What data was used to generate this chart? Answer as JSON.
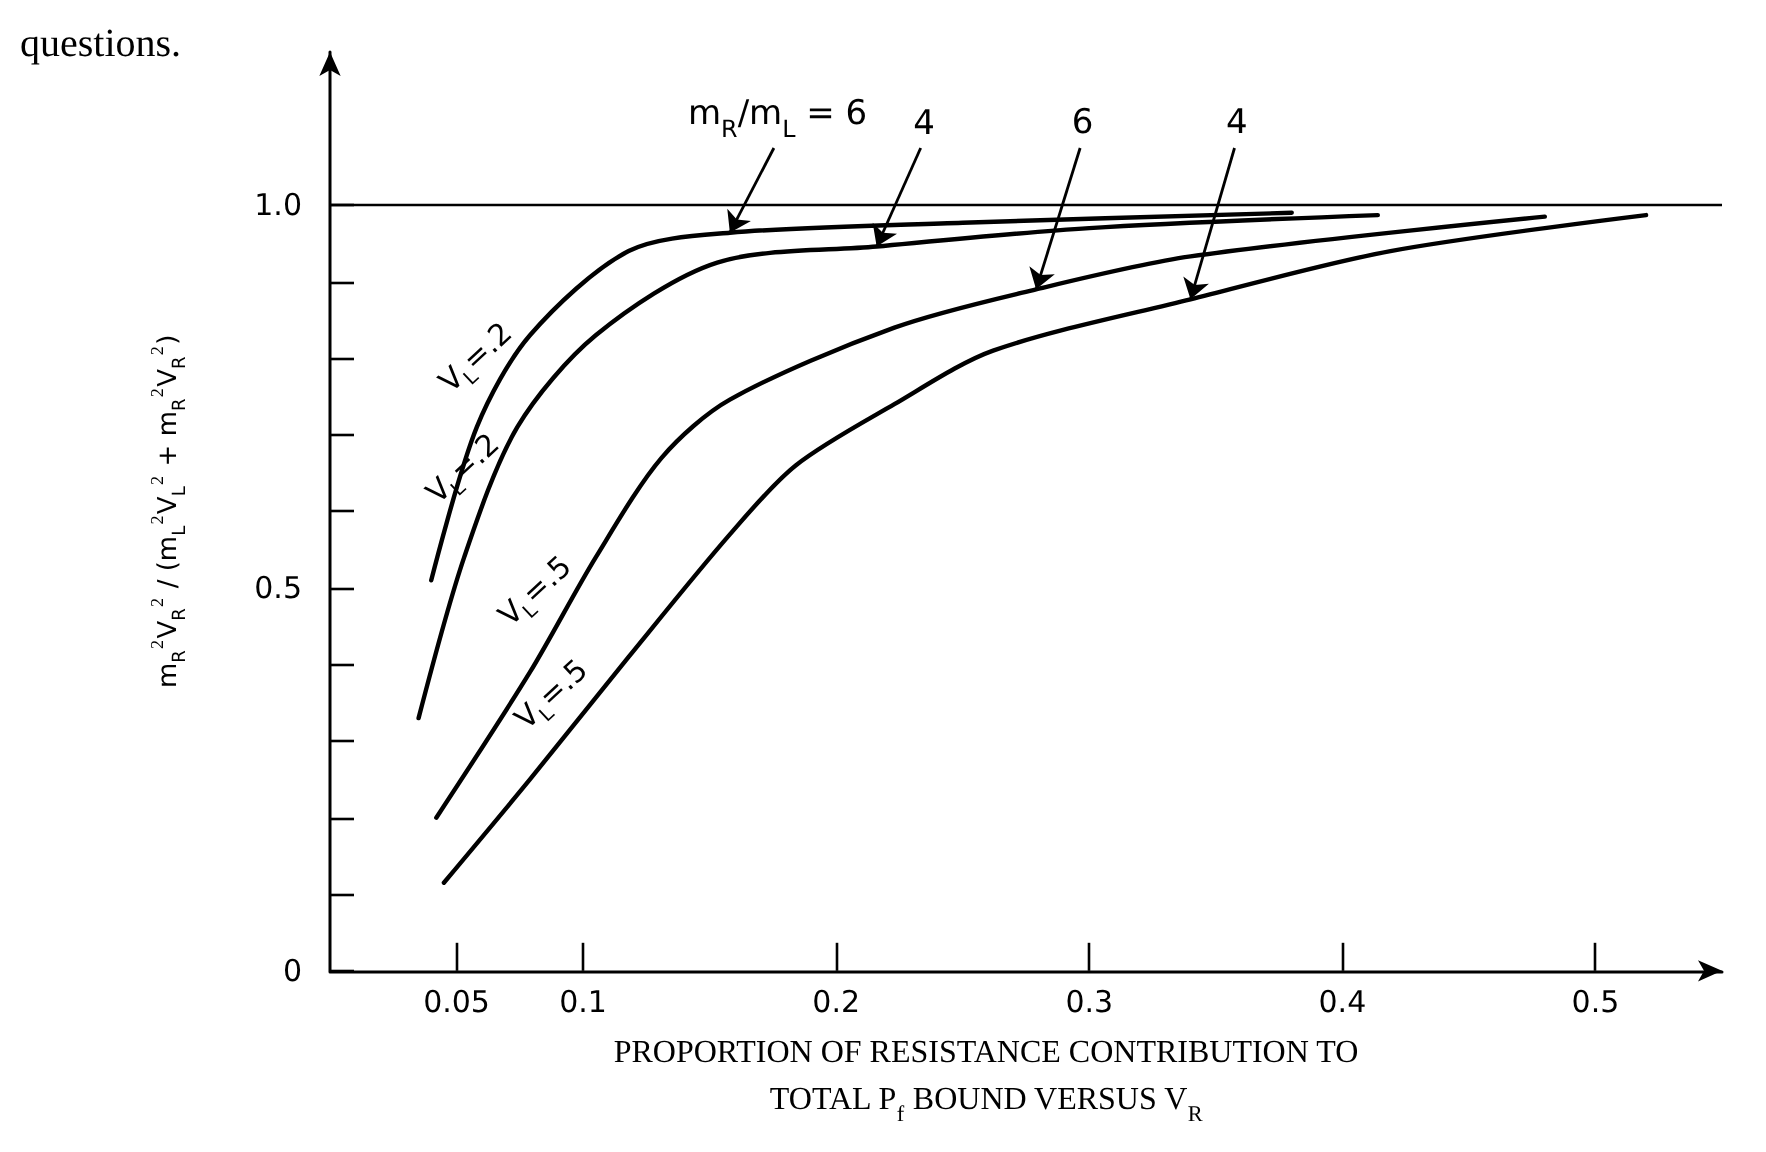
{
  "chart_data": {
    "type": "line",
    "xlabel": "PROPORTION OF RESISTANCE CONTRIBUTION TO\nTOTAL P$_{f}$ BOUND VERSUS V$_{R}$",
    "ylabel": "m$_{R}$$^{2}$V$_{R}$$^{2}$ / (m$_{L}$$^{2}$V$_{L}$$^{2}$ + m$_{R}$$^{2}$V$_{R}$$^{2}$)",
    "series": [
      {
        "name": "V$_{L}$=.2",
        "color": "#000000",
        "x": [
          0.04,
          0.058,
          0.079,
          0.118,
          0.158,
          0.25,
          0.38
        ],
        "values": [
          0.51,
          0.71,
          0.83,
          0.94,
          0.964,
          0.977,
          0.99
        ]
      },
      {
        "name": "V$_{L}$=.2",
        "color": "#000000",
        "x": [
          0.035,
          0.053,
          0.074,
          0.105,
          0.153,
          0.216,
          0.3,
          0.414
        ],
        "values": [
          0.33,
          0.54,
          0.71,
          0.83,
          0.925,
          0.946,
          0.97,
          0.987
        ]
      },
      {
        "name": "V$_{L}$=.5",
        "color": "#000000",
        "x": [
          0.042,
          0.079,
          0.105,
          0.131,
          0.158,
          0.223,
          0.279,
          0.34,
          0.48
        ],
        "values": [
          0.2,
          0.39,
          0.54,
          0.67,
          0.746,
          0.84,
          0.89,
          0.933,
          0.985
        ]
      },
      {
        "name": "V$_{L}$=.5",
        "color": "#000000",
        "x": [
          0.045,
          0.079,
          0.118,
          0.158,
          0.184,
          0.223,
          0.262,
          0.34,
          0.419,
          0.52
        ],
        "values": [
          0.115,
          0.25,
          0.41,
          0.57,
          0.66,
          0.74,
          0.81,
          0.877,
          0.94,
          0.987
        ]
      }
    ],
    "xlim": [
      0,
      0.55
    ],
    "xticks": [
      0.05,
      0.1,
      0.2,
      0.3,
      0.4,
      0.5
    ],
    "ylim": [
      0,
      1.2
    ],
    "yticks": [
      0,
      {
        "value": 0.1,
        "label": null
      },
      {
        "value": 0.2,
        "label": null
      },
      {
        "value": 0.3,
        "label": null
      },
      {
        "value": 0.4,
        "label": null
      },
      0.5,
      {
        "value": 0.6,
        "label": null
      },
      {
        "value": 0.7,
        "label": null
      },
      {
        "value": 0.8,
        "label": null
      },
      {
        "value": 0.9,
        "label": null
      },
      {
        "value": 1,
        "label": "1.0"
      }
    ],
    "ref_lines": [
      {
        "axis": "y",
        "value": 1,
        "label": null,
        "color": "#000000"
      }
    ],
    "annotations": [
      "questions.",
      {
        "text": "m$_{R}$/m$_{L}$ = 6",
        "x": 0.158,
        "y": 0.964
      },
      {
        "text": "4",
        "x": 0.216,
        "y": 0.946
      },
      {
        "text": "6",
        "x": 0.279,
        "y": 0.89
      },
      {
        "text": "4",
        "x": 0.34,
        "y": 0.877
      }
    ],
    "grid": false,
    "legend": false,
    "marker": "none",
    "line_style": "solid"
  }
}
